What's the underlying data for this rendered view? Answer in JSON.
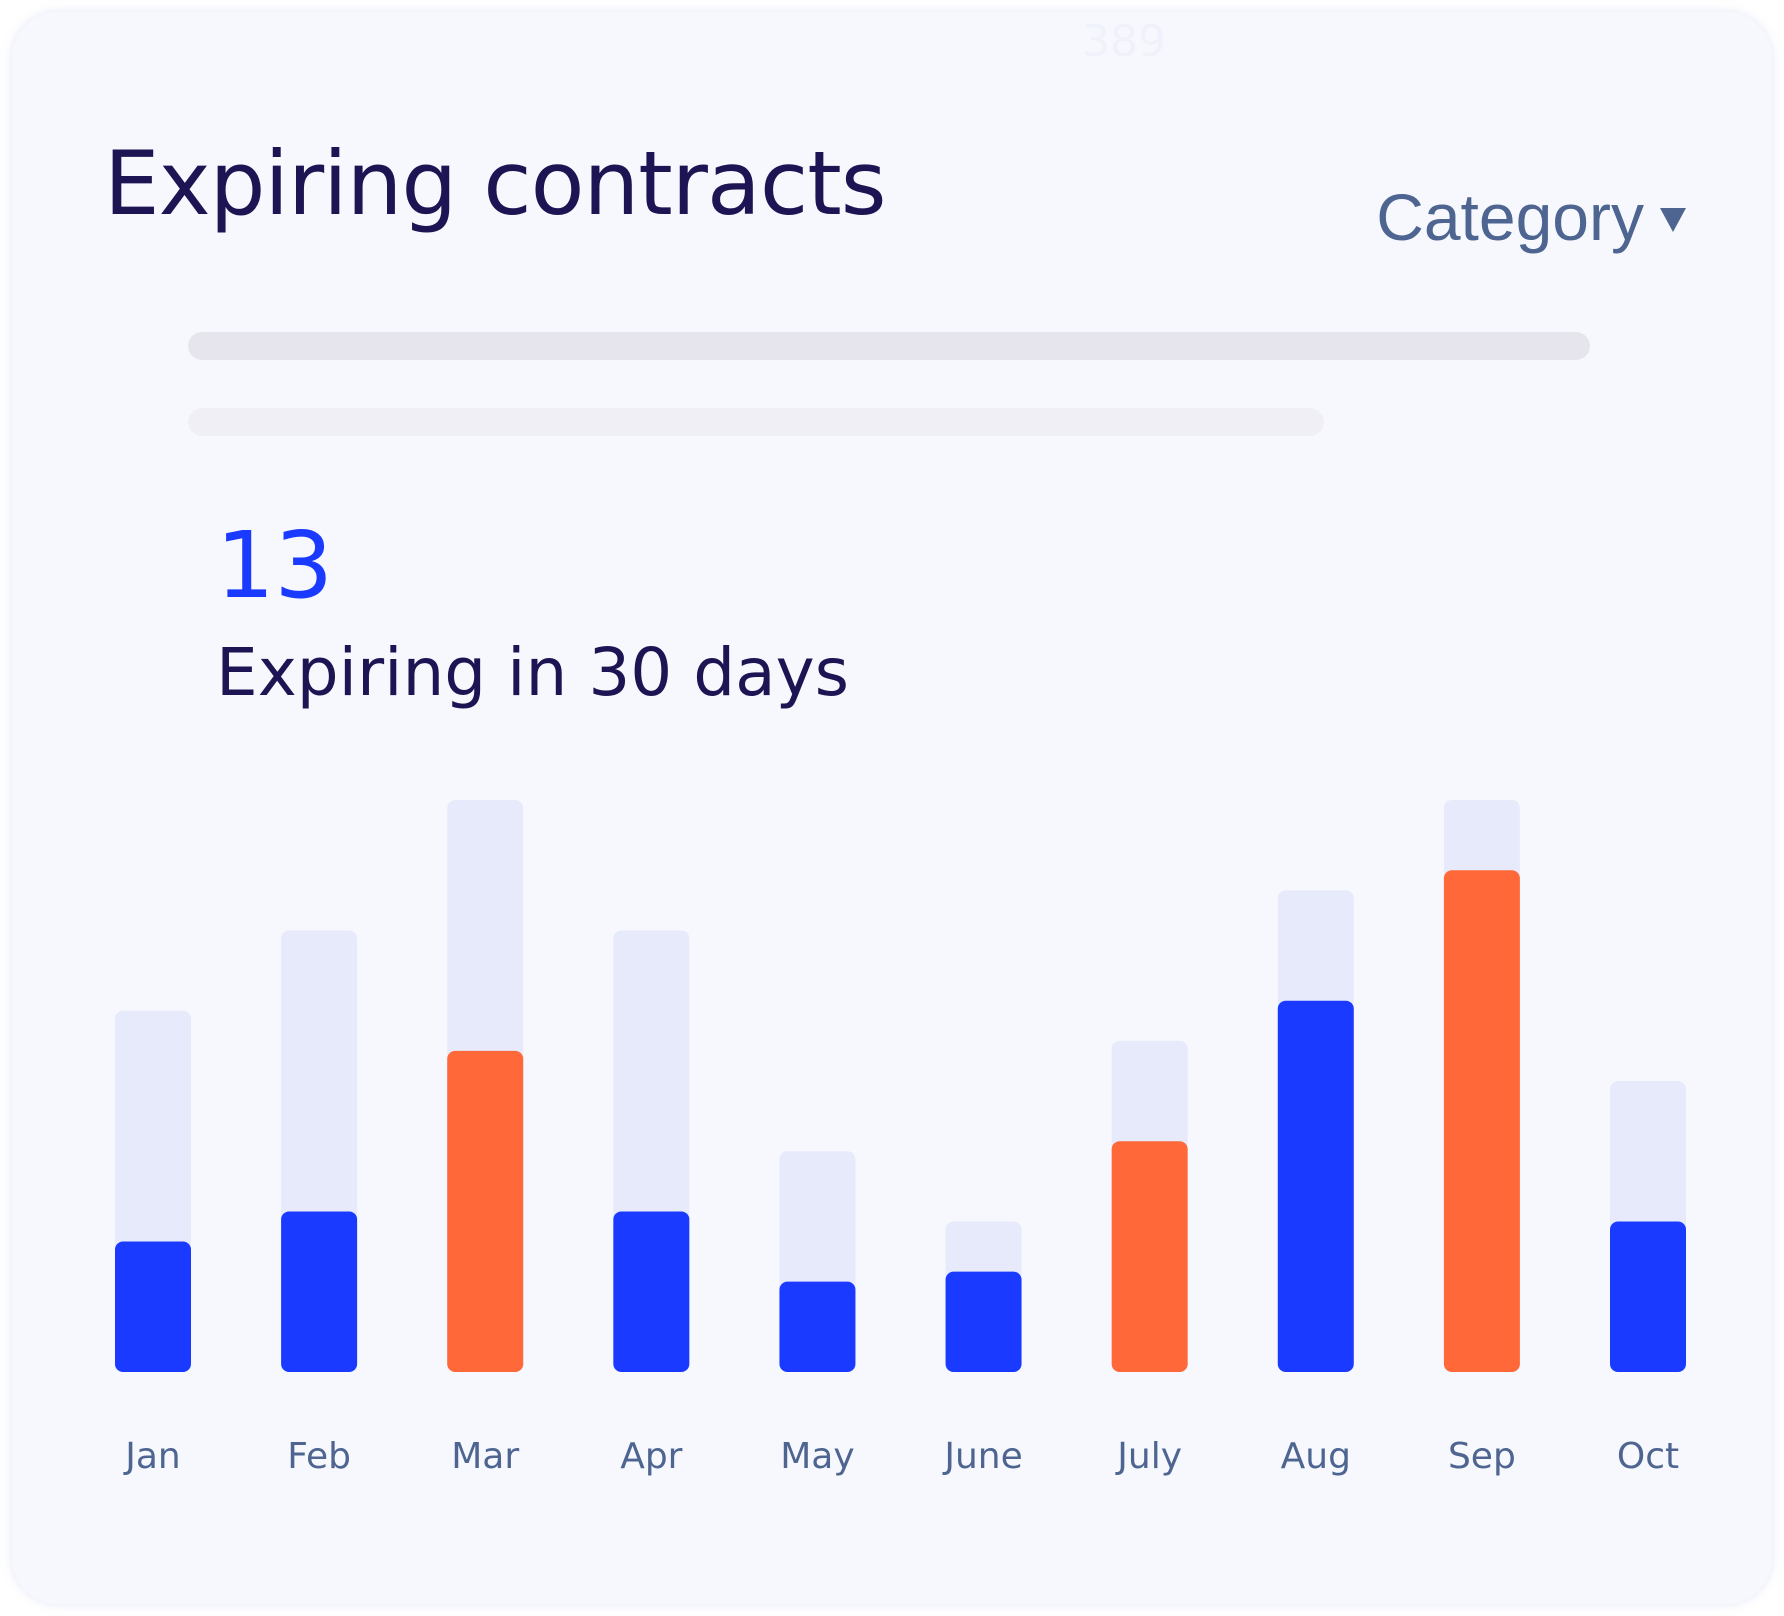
{
  "card": {
    "faint_number": "389",
    "title": "Expiring contracts",
    "dropdown_label": "Category",
    "kpi_value": "13",
    "kpi_label": "Expiring in 30 days"
  },
  "colors": {
    "title": "#1d1553",
    "muted_text": "#4d6590",
    "accent_blue": "#1a3bff",
    "accent_orange": "#ff6838",
    "bar_background": "#e6eafb",
    "skeleton_dark": "#e6e5ee",
    "skeleton_light": "#f0eff5"
  },
  "icons": {
    "dropdown": "chevron-down-icon"
  },
  "chart_data": {
    "type": "bar",
    "categories": [
      "Jan",
      "Feb",
      "Mar",
      "Apr",
      "May",
      "June",
      "July",
      "Aug",
      "Sep",
      "Oct"
    ],
    "series": [
      {
        "role": "total",
        "values": [
          36,
          44,
          57,
          44,
          22,
          15,
          33,
          48,
          57,
          29
        ]
      },
      {
        "role": "expiring",
        "values": [
          13,
          16,
          32,
          16,
          9,
          10,
          23,
          37,
          50,
          15
        ]
      }
    ],
    "highlight": [
      false,
      false,
      true,
      false,
      false,
      false,
      true,
      false,
      true,
      false
    ],
    "ylim": [
      0,
      57
    ],
    "grid": false,
    "title": "",
    "xlabel": "",
    "ylabel": ""
  }
}
